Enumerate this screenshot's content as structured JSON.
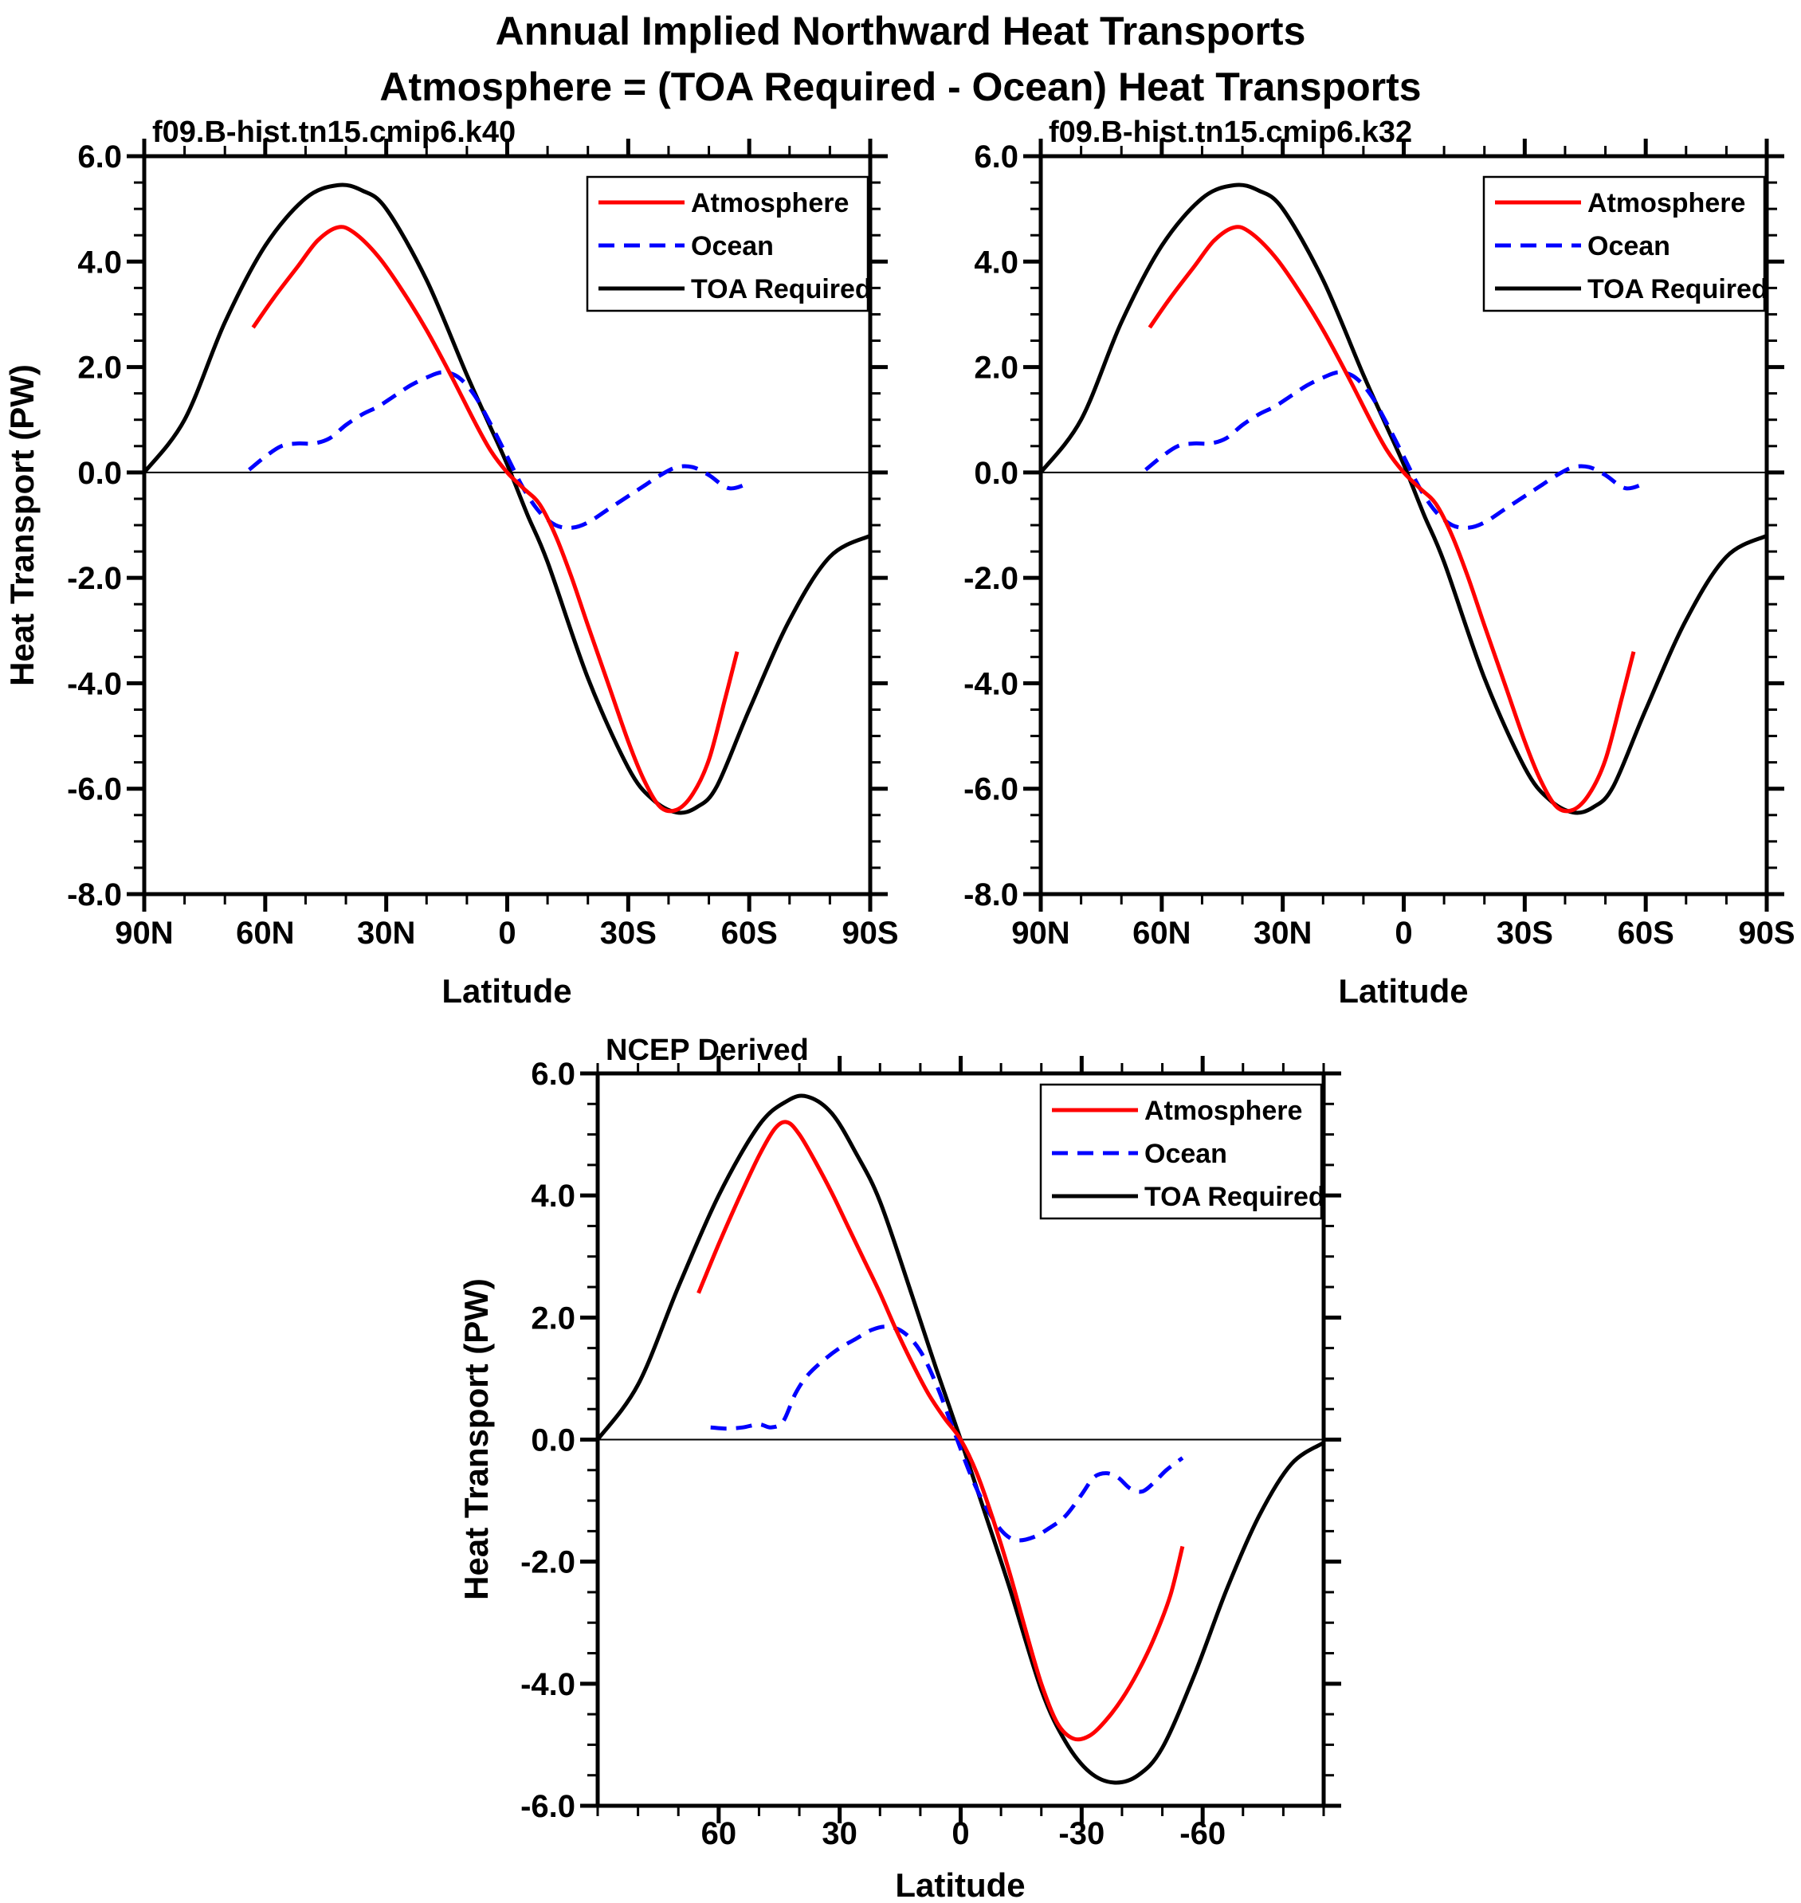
{
  "title": {
    "line1": "Annual Implied Northward Heat Transports",
    "line2": "Atmosphere = (TOA Required - Ocean) Heat Transports"
  },
  "colors": {
    "atmosphere": "#ff0000",
    "ocean": "#0000ff",
    "toa_required": "#000000",
    "axis": "#000000",
    "background": "#ffffff"
  },
  "legend": {
    "position": "top-right",
    "entries": [
      {
        "label": "Atmosphere"
      },
      {
        "label": "Ocean"
      },
      {
        "label": "TOA Required"
      }
    ]
  },
  "chart_data": [
    {
      "type": "line",
      "title": "f09.B-hist.tn15.cmip6.k40",
      "xlabel": "Latitude",
      "ylabel": "Heat Transport (PW)",
      "xlim": [
        90,
        -90
      ],
      "ylim": [
        -8,
        6
      ],
      "x_minor_step": 10,
      "y_major_step": 2,
      "y_minor_step": 0.5,
      "grid": false,
      "x_ticks": [
        {
          "v": 90,
          "label": "90N"
        },
        {
          "v": 60,
          "label": "60N"
        },
        {
          "v": 30,
          "label": "30N"
        },
        {
          "v": 0,
          "label": "0"
        },
        {
          "v": -30,
          "label": "30S"
        },
        {
          "v": -60,
          "label": "60S"
        },
        {
          "v": -90,
          "label": "90S"
        }
      ],
      "y_tick_labels": [
        {
          "v": 6,
          "label": "6.0"
        },
        {
          "v": 4,
          "label": "4.0"
        },
        {
          "v": 2,
          "label": "2.0"
        },
        {
          "v": 0,
          "label": "0.0"
        },
        {
          "v": -2,
          "label": "-2.0"
        },
        {
          "v": -4,
          "label": "-4.0"
        },
        {
          "v": -6,
          "label": "-6.0"
        },
        {
          "v": -8,
          "label": "-8.0"
        }
      ],
      "series": [
        {
          "name": "Atmosphere",
          "color": "#ff0000",
          "style": "solid",
          "x": [
            63,
            58,
            52,
            47,
            42,
            38,
            32,
            26,
            20,
            14,
            8,
            4,
            0,
            -4,
            -8,
            -12,
            -16,
            -20,
            -25,
            -30,
            -34,
            -38,
            -42,
            -46,
            -50,
            -54,
            -57
          ],
          "y": [
            2.75,
            3.3,
            3.9,
            4.4,
            4.65,
            4.55,
            4.1,
            3.45,
            2.7,
            1.85,
            0.95,
            0.4,
            0.0,
            -0.3,
            -0.6,
            -1.2,
            -2.0,
            -2.9,
            -4.0,
            -5.1,
            -5.85,
            -6.35,
            -6.4,
            -6.1,
            -5.45,
            -4.3,
            -3.4
          ]
        },
        {
          "name": "Ocean",
          "color": "#0000ff",
          "style": "dashed",
          "x": [
            64,
            60,
            56,
            52,
            48,
            44,
            40,
            36,
            32,
            28,
            24,
            20,
            16,
            12,
            8,
            4,
            0,
            -4,
            -8,
            -12,
            -16,
            -20,
            -25,
            -30,
            -34,
            -38,
            -42,
            -46,
            -50,
            -55,
            -60
          ],
          "y": [
            0.05,
            0.3,
            0.5,
            0.55,
            0.55,
            0.65,
            0.9,
            1.1,
            1.25,
            1.45,
            1.65,
            1.8,
            1.9,
            1.8,
            1.45,
            0.9,
            0.3,
            -0.3,
            -0.75,
            -1.0,
            -1.05,
            -0.95,
            -0.7,
            -0.45,
            -0.25,
            -0.05,
            0.1,
            0.1,
            -0.05,
            -0.3,
            -0.2
          ]
        },
        {
          "name": "TOA Required",
          "color": "#000000",
          "style": "solid",
          "x": [
            90,
            80,
            70,
            60,
            50,
            42,
            36,
            30,
            20,
            10,
            5,
            0,
            -5,
            -10,
            -20,
            -30,
            -36,
            -42,
            -47,
            -52,
            -60,
            -70,
            -80,
            -90
          ],
          "y": [
            0.0,
            1.0,
            2.85,
            4.3,
            5.2,
            5.45,
            5.35,
            5.0,
            3.65,
            1.85,
            1.0,
            0.15,
            -0.8,
            -1.7,
            -3.9,
            -5.6,
            -6.2,
            -6.45,
            -6.35,
            -5.95,
            -4.5,
            -2.8,
            -1.6,
            -1.2
          ]
        }
      ]
    },
    {
      "type": "line",
      "title": "f09.B-hist.tn15.cmip6.k32",
      "xlabel": "Latitude",
      "ylabel": "",
      "xlim": [
        90,
        -90
      ],
      "ylim": [
        -8,
        6
      ],
      "x_minor_step": 10,
      "y_major_step": 2,
      "y_minor_step": 0.5,
      "grid": false,
      "x_ticks": [
        {
          "v": 90,
          "label": "90N"
        },
        {
          "v": 60,
          "label": "60N"
        },
        {
          "v": 30,
          "label": "30N"
        },
        {
          "v": 0,
          "label": "0"
        },
        {
          "v": -30,
          "label": "30S"
        },
        {
          "v": -60,
          "label": "60S"
        },
        {
          "v": -90,
          "label": "90S"
        }
      ],
      "y_tick_labels": [
        {
          "v": 6,
          "label": "6.0"
        },
        {
          "v": 4,
          "label": "4.0"
        },
        {
          "v": 2,
          "label": "2.0"
        },
        {
          "v": 0,
          "label": "0.0"
        },
        {
          "v": -2,
          "label": "-2.0"
        },
        {
          "v": -4,
          "label": "-4.0"
        },
        {
          "v": -6,
          "label": "-6.0"
        },
        {
          "v": -8,
          "label": "-8.0"
        }
      ],
      "series": [
        {
          "name": "Atmosphere",
          "color": "#ff0000",
          "style": "solid",
          "x": [
            63,
            58,
            52,
            47,
            42,
            38,
            32,
            26,
            20,
            14,
            8,
            4,
            0,
            -4,
            -8,
            -12,
            -16,
            -20,
            -25,
            -30,
            -34,
            -38,
            -42,
            -46,
            -50,
            -54,
            -57
          ],
          "y": [
            2.75,
            3.3,
            3.9,
            4.4,
            4.65,
            4.55,
            4.1,
            3.45,
            2.7,
            1.85,
            0.95,
            0.4,
            0.0,
            -0.3,
            -0.6,
            -1.2,
            -2.0,
            -2.9,
            -4.0,
            -5.1,
            -5.85,
            -6.35,
            -6.4,
            -6.1,
            -5.45,
            -4.3,
            -3.4
          ]
        },
        {
          "name": "Ocean",
          "color": "#0000ff",
          "style": "dashed",
          "x": [
            64,
            60,
            56,
            52,
            48,
            44,
            40,
            36,
            32,
            28,
            24,
            20,
            16,
            12,
            8,
            4,
            0,
            -4,
            -8,
            -12,
            -16,
            -20,
            -25,
            -30,
            -34,
            -38,
            -42,
            -46,
            -50,
            -55,
            -60
          ],
          "y": [
            0.05,
            0.3,
            0.5,
            0.55,
            0.55,
            0.65,
            0.9,
            1.1,
            1.25,
            1.45,
            1.65,
            1.8,
            1.9,
            1.8,
            1.45,
            0.9,
            0.3,
            -0.3,
            -0.75,
            -1.0,
            -1.05,
            -0.95,
            -0.7,
            -0.45,
            -0.25,
            -0.05,
            0.1,
            0.1,
            -0.05,
            -0.3,
            -0.2
          ]
        },
        {
          "name": "TOA Required",
          "color": "#000000",
          "style": "solid",
          "x": [
            90,
            80,
            70,
            60,
            50,
            42,
            36,
            30,
            20,
            10,
            5,
            0,
            -5,
            -10,
            -20,
            -30,
            -36,
            -42,
            -47,
            -52,
            -60,
            -70,
            -80,
            -90
          ],
          "y": [
            0.0,
            1.0,
            2.85,
            4.3,
            5.2,
            5.45,
            5.35,
            5.0,
            3.65,
            1.85,
            1.0,
            0.15,
            -0.8,
            -1.7,
            -3.9,
            -5.6,
            -6.2,
            -6.45,
            -6.35,
            -5.95,
            -4.5,
            -2.8,
            -1.6,
            -1.2
          ]
        }
      ]
    },
    {
      "type": "line",
      "title": "NCEP Derived",
      "xlabel": "Latitude",
      "ylabel": "Heat Transport (PW)",
      "xlim": [
        90,
        -90
      ],
      "ylim": [
        -6,
        6
      ],
      "x_minor_step": 10,
      "y_major_step": 2,
      "y_minor_step": 0.5,
      "grid": false,
      "x_ticks": [
        {
          "v": 60,
          "label": "60"
        },
        {
          "v": 30,
          "label": "30"
        },
        {
          "v": 0,
          "label": "0"
        },
        {
          "v": -30,
          "label": "-30"
        },
        {
          "v": -60,
          "label": "-60"
        }
      ],
      "y_tick_labels": [
        {
          "v": 6,
          "label": "6.0"
        },
        {
          "v": 4,
          "label": "4.0"
        },
        {
          "v": 2,
          "label": "2.0"
        },
        {
          "v": 0,
          "label": "0.0"
        },
        {
          "v": -2,
          "label": "-2.0"
        },
        {
          "v": -4,
          "label": "-4.0"
        },
        {
          "v": -6,
          "label": "-6.0"
        }
      ],
      "series": [
        {
          "name": "Atmosphere",
          "color": "#ff0000",
          "style": "solid",
          "x": [
            65,
            60,
            55,
            50,
            46,
            43,
            40,
            36,
            32,
            28,
            24,
            20,
            16,
            12,
            8,
            4,
            0,
            -4,
            -8,
            -12,
            -16,
            -20,
            -24,
            -28,
            -32,
            -36,
            -40,
            -44,
            -48,
            -52,
            -55
          ],
          "y": [
            2.4,
            3.2,
            3.95,
            4.65,
            5.1,
            5.2,
            5.0,
            4.55,
            4.05,
            3.5,
            2.95,
            2.4,
            1.8,
            1.25,
            0.75,
            0.35,
            0.0,
            -0.55,
            -1.3,
            -2.15,
            -3.1,
            -4.0,
            -4.65,
            -4.9,
            -4.85,
            -4.6,
            -4.25,
            -3.8,
            -3.25,
            -2.55,
            -1.75
          ]
        },
        {
          "name": "Ocean",
          "color": "#0000ff",
          "style": "dashed",
          "x": [
            62,
            58,
            54,
            50,
            47,
            44,
            41,
            38,
            34,
            30,
            26,
            22,
            18,
            14,
            10,
            6,
            2,
            -2,
            -5,
            -8,
            -11,
            -14,
            -18,
            -22,
            -26,
            -30,
            -33,
            -36,
            -39,
            -42,
            -45,
            -48,
            -51,
            -55
          ],
          "y": [
            0.2,
            0.18,
            0.2,
            0.25,
            0.2,
            0.3,
            0.75,
            1.05,
            1.3,
            1.5,
            1.65,
            1.8,
            1.85,
            1.75,
            1.45,
            0.9,
            0.2,
            -0.5,
            -0.95,
            -1.3,
            -1.55,
            -1.65,
            -1.6,
            -1.45,
            -1.25,
            -0.9,
            -0.62,
            -0.55,
            -0.62,
            -0.8,
            -0.85,
            -0.7,
            -0.5,
            -0.3
          ]
        },
        {
          "name": "TOA Required",
          "color": "#000000",
          "style": "solid",
          "x": [
            90,
            80,
            70,
            60,
            50,
            43,
            38,
            32,
            26,
            20,
            12,
            6,
            0,
            -6,
            -12,
            -20,
            -26,
            -32,
            -38,
            -44,
            -50,
            -58,
            -66,
            -74,
            -82,
            -90
          ],
          "y": [
            0.0,
            0.9,
            2.5,
            4.0,
            5.15,
            5.55,
            5.62,
            5.35,
            4.7,
            3.9,
            2.35,
            1.15,
            0.0,
            -1.2,
            -2.4,
            -4.1,
            -4.95,
            -5.45,
            -5.62,
            -5.5,
            -5.05,
            -3.85,
            -2.45,
            -1.25,
            -0.4,
            -0.05
          ]
        }
      ]
    }
  ]
}
